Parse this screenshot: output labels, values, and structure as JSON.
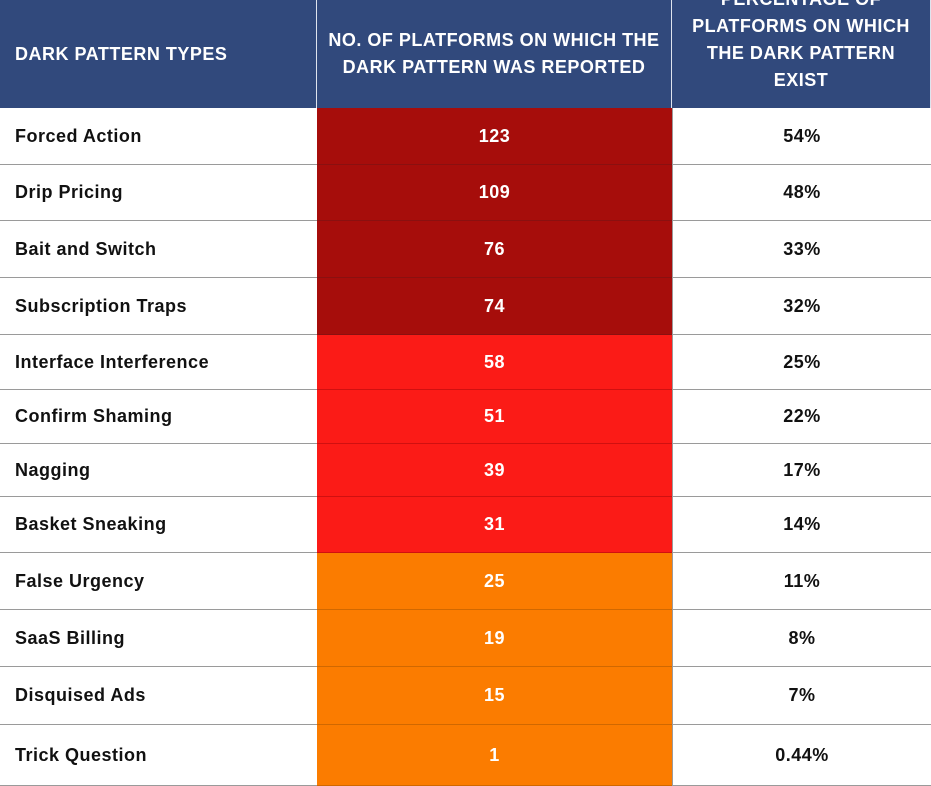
{
  "table": {
    "headers": [
      "DARK PATTERN TYPES",
      "NO. OF PLATFORMS ON WHICH THE DARK PATTERN WAS REPORTED",
      "PERCENTAGE OF PLATFORMS ON WHICH THE DARK PATTERN EXIST"
    ],
    "rows": [
      [
        "Forced Action",
        "123",
        "54%"
      ],
      [
        "Drip Pricing",
        "109",
        "48%"
      ],
      [
        "Bait and Switch",
        "76",
        "33%"
      ],
      [
        "Subscription Traps",
        "74",
        "32%"
      ],
      [
        "Interface Interference",
        "58",
        "25%"
      ],
      [
        "Confirm Shaming",
        "51",
        "22%"
      ],
      [
        "Nagging",
        "39",
        "17%"
      ],
      [
        "Basket Sneaking",
        "31",
        "14%"
      ],
      [
        "False Urgency",
        "25",
        "11%"
      ],
      [
        "SaaS Billing",
        "19",
        "8%"
      ],
      [
        "Disquised Ads",
        "15",
        "7%"
      ],
      [
        "Trick Question",
        "1",
        "0.44%"
      ]
    ]
  }
}
